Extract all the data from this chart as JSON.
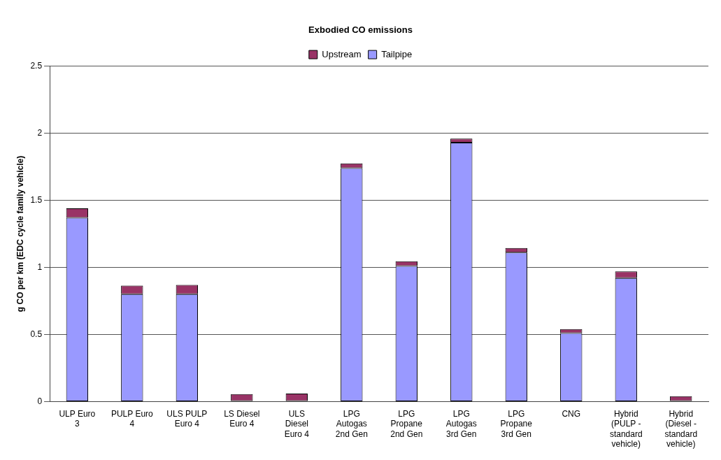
{
  "chart_data": {
    "type": "bar",
    "title": "Exbodied CO emissions",
    "ylabel": "g CO per km (EDC cycle family vehicle)",
    "categories": [
      "ULP Euro 3",
      "PULP Euro 4",
      "ULS PULP Euro 4",
      "LS Diesel Euro 4",
      "ULS Diesel Euro 4",
      "LPG Autogas 2nd Gen",
      "LPG Propane 2nd Gen",
      "LPG Autogas 3rd Gen",
      "LPG Propane 3rd Gen",
      "CNG",
      "Hybrid (PULP - standard vehicle)",
      "Hybrid (Diesel - standard vehicle)"
    ],
    "series": [
      {
        "name": "Tailpipe",
        "color": "#9999ff",
        "values": [
          1.37,
          0.8,
          0.8,
          0.005,
          0.005,
          1.74,
          1.01,
          1.93,
          1.11,
          0.51,
          0.92,
          0.005
        ]
      },
      {
        "name": "Upstream",
        "color": "#993366",
        "values": [
          0.07,
          0.065,
          0.07,
          0.05,
          0.055,
          0.035,
          0.035,
          0.03,
          0.035,
          0.03,
          0.05,
          0.035
        ]
      }
    ],
    "stacked": true,
    "ylim": [
      0,
      2.5
    ],
    "yticks": [
      0,
      0.5,
      1,
      1.5,
      2,
      2.5
    ],
    "grid": "y",
    "legend": "top"
  }
}
